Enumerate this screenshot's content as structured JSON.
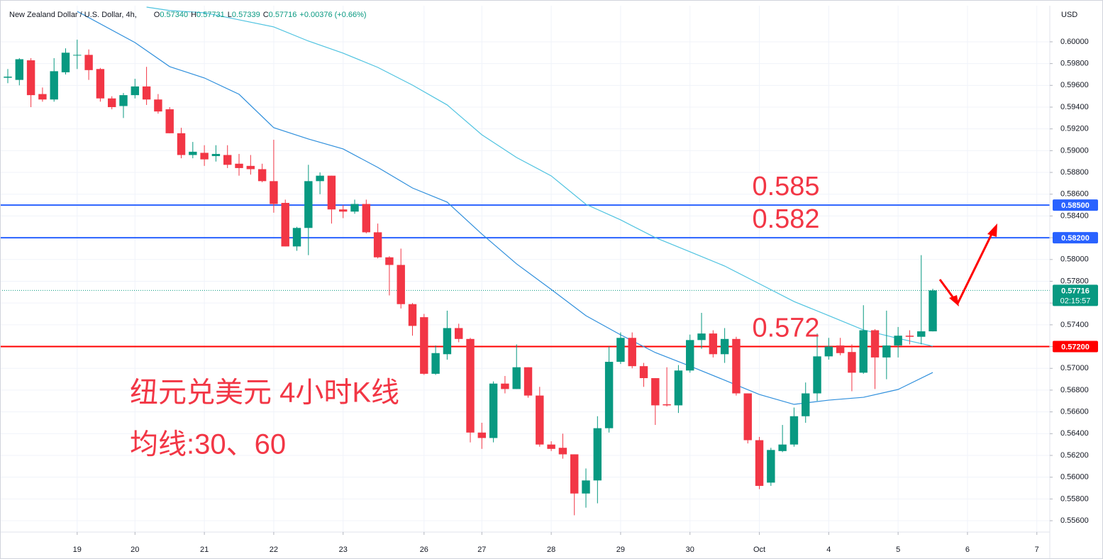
{
  "header": {
    "title": "New Zealand Dollar / U.S. Dollar, 4h,",
    "ohlc": [
      {
        "key": "O",
        "value": "0.57340"
      },
      {
        "key": "H",
        "value": "0.57731"
      },
      {
        "key": "L",
        "value": "0.57339"
      },
      {
        "key": "C",
        "value": "0.57716"
      }
    ],
    "change": "+0.00376 (+0.66%)"
  },
  "chart_data": {
    "type": "candlestick",
    "currency": "USD",
    "up_color": "#089981",
    "down_color": "#f23645",
    "open": [
      0.5967,
      0.5965,
      0.5983,
      0.5952,
      0.5947,
      0.5972,
      0.5988,
      0.5988,
      0.5975,
      0.5948,
      0.5941,
      0.5951,
      0.5959,
      0.5947,
      0.5938,
      0.5916,
      0.5896,
      0.5898,
      0.5895,
      0.5896,
      0.5888,
      0.5886,
      0.5883,
      0.5872,
      0.5852,
      0.5812,
      0.5829,
      0.5872,
      0.5877,
      0.5846,
      0.5844,
      0.5851,
      0.5825,
      0.5802,
      0.5795,
      0.5759,
      0.5747,
      0.5695,
      0.5713,
      0.5737,
      0.5727,
      0.5641,
      0.5636,
      0.5686,
      0.5681,
      0.5701,
      0.5675,
      0.563,
      0.5627,
      0.5621,
      0.5585,
      0.5597,
      0.5645,
      0.5706,
      0.5728,
      0.5702,
      0.5691,
      0.5667,
      0.5666,
      0.5698,
      0.5726,
      0.5732,
      0.5713,
      0.5727,
      0.5677,
      0.5634,
      0.5595,
      0.5624,
      0.563,
      0.5656,
      0.5677,
      0.5711,
      0.5721,
      0.5715,
      0.5696,
      0.5735,
      0.571,
      0.5721,
      0.573,
      0.5729,
      0.5734
    ],
    "high": [
      0.5975,
      0.5985,
      0.5985,
      0.5958,
      0.5985,
      0.5994,
      0.6002,
      0.5993,
      0.5976,
      0.595,
      0.5953,
      0.5966,
      0.5977,
      0.5952,
      0.594,
      0.5921,
      0.5908,
      0.5905,
      0.5905,
      0.5905,
      0.5897,
      0.5896,
      0.5888,
      0.591,
      0.5855,
      0.583,
      0.5887,
      0.588,
      0.5877,
      0.585,
      0.5855,
      0.5855,
      0.5833,
      0.5803,
      0.581,
      0.576,
      0.575,
      0.5721,
      0.5753,
      0.5741,
      0.5728,
      0.565,
      0.5688,
      0.5693,
      0.5722,
      0.5701,
      0.5683,
      0.5633,
      0.564,
      0.5621,
      0.5608,
      0.5656,
      0.572,
      0.5733,
      0.5733,
      0.5705,
      0.5691,
      0.5701,
      0.5703,
      0.5731,
      0.5751,
      0.5735,
      0.5737,
      0.5729,
      0.5677,
      0.5637,
      0.5627,
      0.5648,
      0.5664,
      0.5687,
      0.5732,
      0.5728,
      0.5728,
      0.5722,
      0.5758,
      0.5736,
      0.5753,
      0.5738,
      0.5735,
      0.5804,
      0.57731
    ],
    "low": [
      0.5962,
      0.596,
      0.594,
      0.5945,
      0.5945,
      0.597,
      0.5975,
      0.5965,
      0.5945,
      0.5938,
      0.593,
      0.5948,
      0.5942,
      0.5934,
      0.5916,
      0.5893,
      0.5893,
      0.5886,
      0.589,
      0.5884,
      0.5877,
      0.5878,
      0.5871,
      0.5843,
      0.5812,
      0.5808,
      0.5804,
      0.586,
      0.5833,
      0.5838,
      0.5842,
      0.5824,
      0.5801,
      0.5767,
      0.5755,
      0.573,
      0.5694,
      0.5694,
      0.5708,
      0.5724,
      0.5632,
      0.5626,
      0.5632,
      0.5677,
      0.5681,
      0.5673,
      0.5628,
      0.5624,
      0.5617,
      0.5565,
      0.5572,
      0.5576,
      0.5641,
      0.5704,
      0.57,
      0.5683,
      0.5648,
      0.5665,
      0.5659,
      0.5696,
      0.5718,
      0.571,
      0.5705,
      0.5675,
      0.5631,
      0.5589,
      0.5592,
      0.5623,
      0.5628,
      0.565,
      0.567,
      0.5708,
      0.5712,
      0.5679,
      0.5695,
      0.5681,
      0.569,
      0.571,
      0.5722,
      0.5722,
      0.57339
    ],
    "close": [
      0.5968,
      0.5984,
      0.5951,
      0.5947,
      0.5973,
      0.599,
      0.5988,
      0.5974,
      0.5948,
      0.594,
      0.5951,
      0.5959,
      0.5947,
      0.5936,
      0.5916,
      0.5896,
      0.5899,
      0.5892,
      0.5897,
      0.5887,
      0.5884,
      0.5883,
      0.5872,
      0.5851,
      0.5812,
      0.5829,
      0.5872,
      0.5877,
      0.5846,
      0.5844,
      0.5851,
      0.5825,
      0.5802,
      0.5795,
      0.5759,
      0.5739,
      0.5695,
      0.5714,
      0.5737,
      0.5727,
      0.5641,
      0.5636,
      0.5686,
      0.5681,
      0.5701,
      0.5675,
      0.563,
      0.5626,
      0.5621,
      0.5585,
      0.5597,
      0.5645,
      0.5706,
      0.5728,
      0.5702,
      0.5691,
      0.5666,
      0.5666,
      0.5698,
      0.5726,
      0.5732,
      0.5713,
      0.5727,
      0.5677,
      0.5634,
      0.5592,
      0.5625,
      0.563,
      0.5656,
      0.5677,
      0.5711,
      0.572,
      0.5714,
      0.5696,
      0.5735,
      0.571,
      0.5721,
      0.573,
      0.5729,
      0.5734,
      0.57716
    ],
    "series": [
      {
        "color": "#2f8fdc",
        "x": [
          6,
          11,
          14,
          17,
          20,
          23,
          26,
          29,
          32,
          35,
          38,
          41,
          44,
          47,
          50,
          53,
          56,
          59,
          62,
          65,
          68,
          71,
          74,
          77,
          80
        ],
        "values": [
          0.6028,
          0.59993,
          0.59772,
          0.59668,
          0.59518,
          0.59211,
          0.59107,
          0.59016,
          0.58846,
          0.58657,
          0.58527,
          0.58234,
          0.5796,
          0.57725,
          0.57484,
          0.57308,
          0.57145,
          0.57021,
          0.56891,
          0.5676,
          0.56669,
          0.56708,
          0.56734,
          0.56806,
          0.56962
        ]
      },
      {
        "color": "#4fc3e0",
        "x": [
          12,
          14,
          17,
          20,
          23,
          26,
          29,
          32,
          35,
          38,
          41,
          44,
          47,
          50,
          53,
          56,
          59,
          62,
          65,
          68,
          71,
          74,
          77,
          80
        ],
        "values": [
          0.60319,
          0.60287,
          0.60267,
          0.60202,
          0.60137,
          0.60007,
          0.59896,
          0.59765,
          0.59602,
          0.5942,
          0.59146,
          0.58937,
          0.58768,
          0.58507,
          0.58364,
          0.58201,
          0.58071,
          0.5794,
          0.57777,
          0.57614,
          0.57484,
          0.57353,
          0.57275,
          0.57204
        ]
      }
    ],
    "hlines": [
      {
        "value": 0.585,
        "label": "0.58500",
        "annotation": "0.585",
        "color": "#2962ff"
      },
      {
        "value": 0.582,
        "label": "0.58200",
        "annotation": "0.582",
        "color": "#2962ff"
      },
      {
        "value": 0.572,
        "label": "0.57200",
        "annotation": "0.572",
        "color": "#ff0000"
      }
    ],
    "last_price": {
      "value": 0.57716,
      "label": "0.57716",
      "countdown": "02:15:57"
    },
    "annotations": [
      "纽元兑美元 4小时K线",
      "均线:30、60"
    ],
    "xlim": [
      -0.675,
      90.12
    ],
    "xticks": [
      {
        "value": 6,
        "label": "19"
      },
      {
        "value": 11,
        "label": "20"
      },
      {
        "value": 17,
        "label": "21"
      },
      {
        "value": 23,
        "label": "22"
      },
      {
        "value": 29,
        "label": "23"
      },
      {
        "value": 36,
        "label": "26"
      },
      {
        "value": 41,
        "label": "27"
      },
      {
        "value": 47,
        "label": "28"
      },
      {
        "value": 53,
        "label": "29"
      },
      {
        "value": 59,
        "label": "30"
      },
      {
        "value": 65,
        "label": "Oct"
      },
      {
        "value": 71,
        "label": "4"
      },
      {
        "value": 77,
        "label": "5"
      },
      {
        "value": 83,
        "label": "6"
      },
      {
        "value": 89,
        "label": "7"
      }
    ],
    "ylim": [
      0.55496,
      0.60332
    ],
    "yticks": [
      {
        "value": 0.556,
        "label": "0.55600"
      },
      {
        "value": 0.558,
        "label": "0.55800"
      },
      {
        "value": 0.56,
        "label": "0.56000"
      },
      {
        "value": 0.562,
        "label": "0.56200"
      },
      {
        "value": 0.564,
        "label": "0.56400"
      },
      {
        "value": 0.566,
        "label": "0.56600"
      },
      {
        "value": 0.568,
        "label": "0.56800"
      },
      {
        "value": 0.57,
        "label": "0.57000"
      },
      {
        "value": 0.572,
        "label": "0.57200"
      },
      {
        "value": 0.574,
        "label": "0.57400"
      },
      {
        "value": 0.576,
        "label": "0.57600"
      },
      {
        "value": 0.578,
        "label": "0.57800"
      },
      {
        "value": 0.58,
        "label": "0.58000"
      },
      {
        "value": 0.582,
        "label": "0.58200"
      },
      {
        "value": 0.584,
        "label": "0.58400"
      },
      {
        "value": 0.586,
        "label": "0.58600"
      },
      {
        "value": 0.588,
        "label": "0.58800"
      },
      {
        "value": 0.59,
        "label": "0.59000"
      },
      {
        "value": 0.592,
        "label": "0.59200"
      },
      {
        "value": 0.594,
        "label": "0.59400"
      },
      {
        "value": 0.596,
        "label": "0.59600"
      },
      {
        "value": 0.598,
        "label": "0.59800"
      },
      {
        "value": 0.6,
        "label": "0.60000"
      }
    ],
    "grid": true
  }
}
